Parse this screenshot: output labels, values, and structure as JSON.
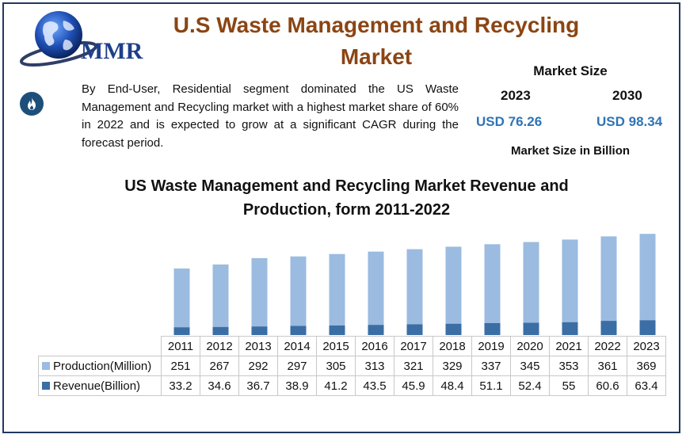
{
  "header": {
    "logo_text": "MMR",
    "title": "U.S Waste Management and Recycling Market"
  },
  "description": "By End-User, Residential segment dominated the US Waste Management and Recycling market with a highest market share of 60% in 2022 and is expected to grow at a significant CAGR during the forecast period.",
  "market_size": {
    "heading": "Market Size",
    "year_start": "2023",
    "year_end": "2030",
    "value_start": "USD 76.26",
    "value_end": "USD 98.34",
    "unit_label": "Market Size in Billion"
  },
  "colors": {
    "title": "#8b4513",
    "production": "#9bbbe0",
    "revenue": "#3a6ea5",
    "value_text": "#2e74b5"
  },
  "icons": {
    "logo": "globe-icon",
    "bullet": "flame-icon"
  },
  "chart_data": {
    "type": "bar",
    "title": "US Waste Management and Recycling Market Revenue and Production, form 2011-2022",
    "categories": [
      "2011",
      "2012",
      "2013",
      "2014",
      "2015",
      "2016",
      "2017",
      "2018",
      "2019",
      "2020",
      "2021",
      "2022",
      "2023"
    ],
    "series": [
      {
        "name": "Production(Million)",
        "values": [
          251,
          267,
          292,
          297,
          305,
          313,
          321,
          329,
          337,
          345,
          353,
          361,
          369
        ],
        "color": "#9bbbe0"
      },
      {
        "name": "Revenue(Billion)",
        "values": [
          33.2,
          34.6,
          36.7,
          38.9,
          41.2,
          43.5,
          45.9,
          48.4,
          51.1,
          52.4,
          55,
          60.6,
          63.4
        ],
        "color": "#3a6ea5"
      }
    ],
    "stacked": true,
    "data_table": true,
    "grid": false,
    "ylim": [
      0,
      440
    ]
  }
}
